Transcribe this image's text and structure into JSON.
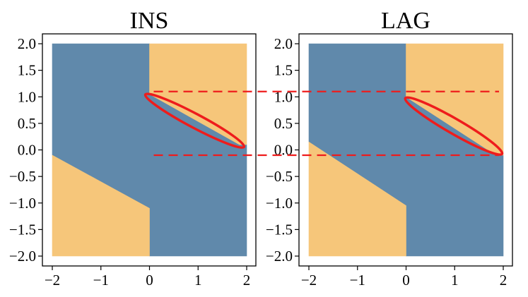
{
  "chart_data": [
    {
      "type": "heatmap",
      "title": "INS",
      "xlabel": "",
      "ylabel": "",
      "xlim": [
        -2,
        2
      ],
      "ylim": [
        -2,
        2
      ],
      "x_ticks": [
        "−2",
        "−1",
        "0",
        "1",
        "2"
      ],
      "y_ticks": [
        "2.0",
        "1.5",
        "1.0",
        "0.5",
        "0.0",
        "−0.5",
        "−1.0",
        "−1.5",
        "−2.0"
      ],
      "regions": [
        {
          "class": "blue",
          "color": "#6089ab",
          "polygon": [
            [
              -2,
              2
            ],
            [
              0,
              2
            ],
            [
              0,
              1.05
            ],
            [
              1.85,
              0.1
            ],
            [
              2,
              0.1
            ],
            [
              2,
              -2
            ],
            [
              0,
              -2
            ],
            [
              0,
              -1.1
            ],
            [
              -2,
              -0.1
            ]
          ]
        },
        {
          "class": "orange",
          "color": "#f6c67a",
          "polygon": [
            [
              0,
              2
            ],
            [
              2,
              2
            ],
            [
              2,
              0.1
            ],
            [
              1.85,
              0.1
            ],
            [
              0,
              1.05
            ]
          ]
        },
        {
          "class": "orange",
          "color": "#f6c67a",
          "polygon": [
            [
              -2,
              -0.1
            ],
            [
              0,
              -1.1
            ],
            [
              0,
              -2
            ],
            [
              -2,
              -2
            ]
          ]
        }
      ],
      "annotation": {
        "shape": "ellipse",
        "color": "#ee1c1c",
        "center": [
          0.93,
          0.55
        ],
        "rx": 1.15,
        "ry": 0.13,
        "rotation_deg": 28
      }
    },
    {
      "type": "heatmap",
      "title": "LAG",
      "xlabel": "",
      "ylabel": "",
      "xlim": [
        -2,
        2
      ],
      "ylim": [
        -2,
        2
      ],
      "x_ticks": [
        "−2",
        "−1",
        "0",
        "1",
        "2"
      ],
      "y_ticks": [
        "2.0",
        "1.5",
        "1.0",
        "0.5",
        "0.0",
        "−0.5",
        "−1.0",
        "−1.5",
        "−2.0"
      ],
      "regions": [
        {
          "class": "blue",
          "color": "#6089ab",
          "polygon": [
            [
              -2,
              2
            ],
            [
              0,
              2
            ],
            [
              0,
              1.0
            ],
            [
              1.85,
              -0.1
            ],
            [
              2,
              -0.1
            ],
            [
              2,
              -2
            ],
            [
              0,
              -2
            ],
            [
              0,
              -1.05
            ],
            [
              -2,
              0.15
            ]
          ]
        },
        {
          "class": "orange",
          "color": "#f6c67a",
          "polygon": [
            [
              0,
              2
            ],
            [
              2,
              2
            ],
            [
              2,
              -0.1
            ],
            [
              1.85,
              -0.1
            ],
            [
              0,
              1.0
            ]
          ]
        },
        {
          "class": "orange",
          "color": "#f6c67a",
          "polygon": [
            [
              -2,
              0.15
            ],
            [
              0,
              -1.05
            ],
            [
              0,
              -2
            ],
            [
              -2,
              -2
            ]
          ]
        }
      ],
      "annotation": {
        "shape": "ellipse",
        "color": "#ee1c1c",
        "center": [
          0.98,
          0.45
        ],
        "rx": 1.15,
        "ry": 0.14,
        "rotation_deg": 30
      }
    }
  ],
  "connectors": {
    "style": "dashed",
    "color": "#ee1c1c",
    "y_values": [
      1.1,
      -0.1
    ]
  }
}
